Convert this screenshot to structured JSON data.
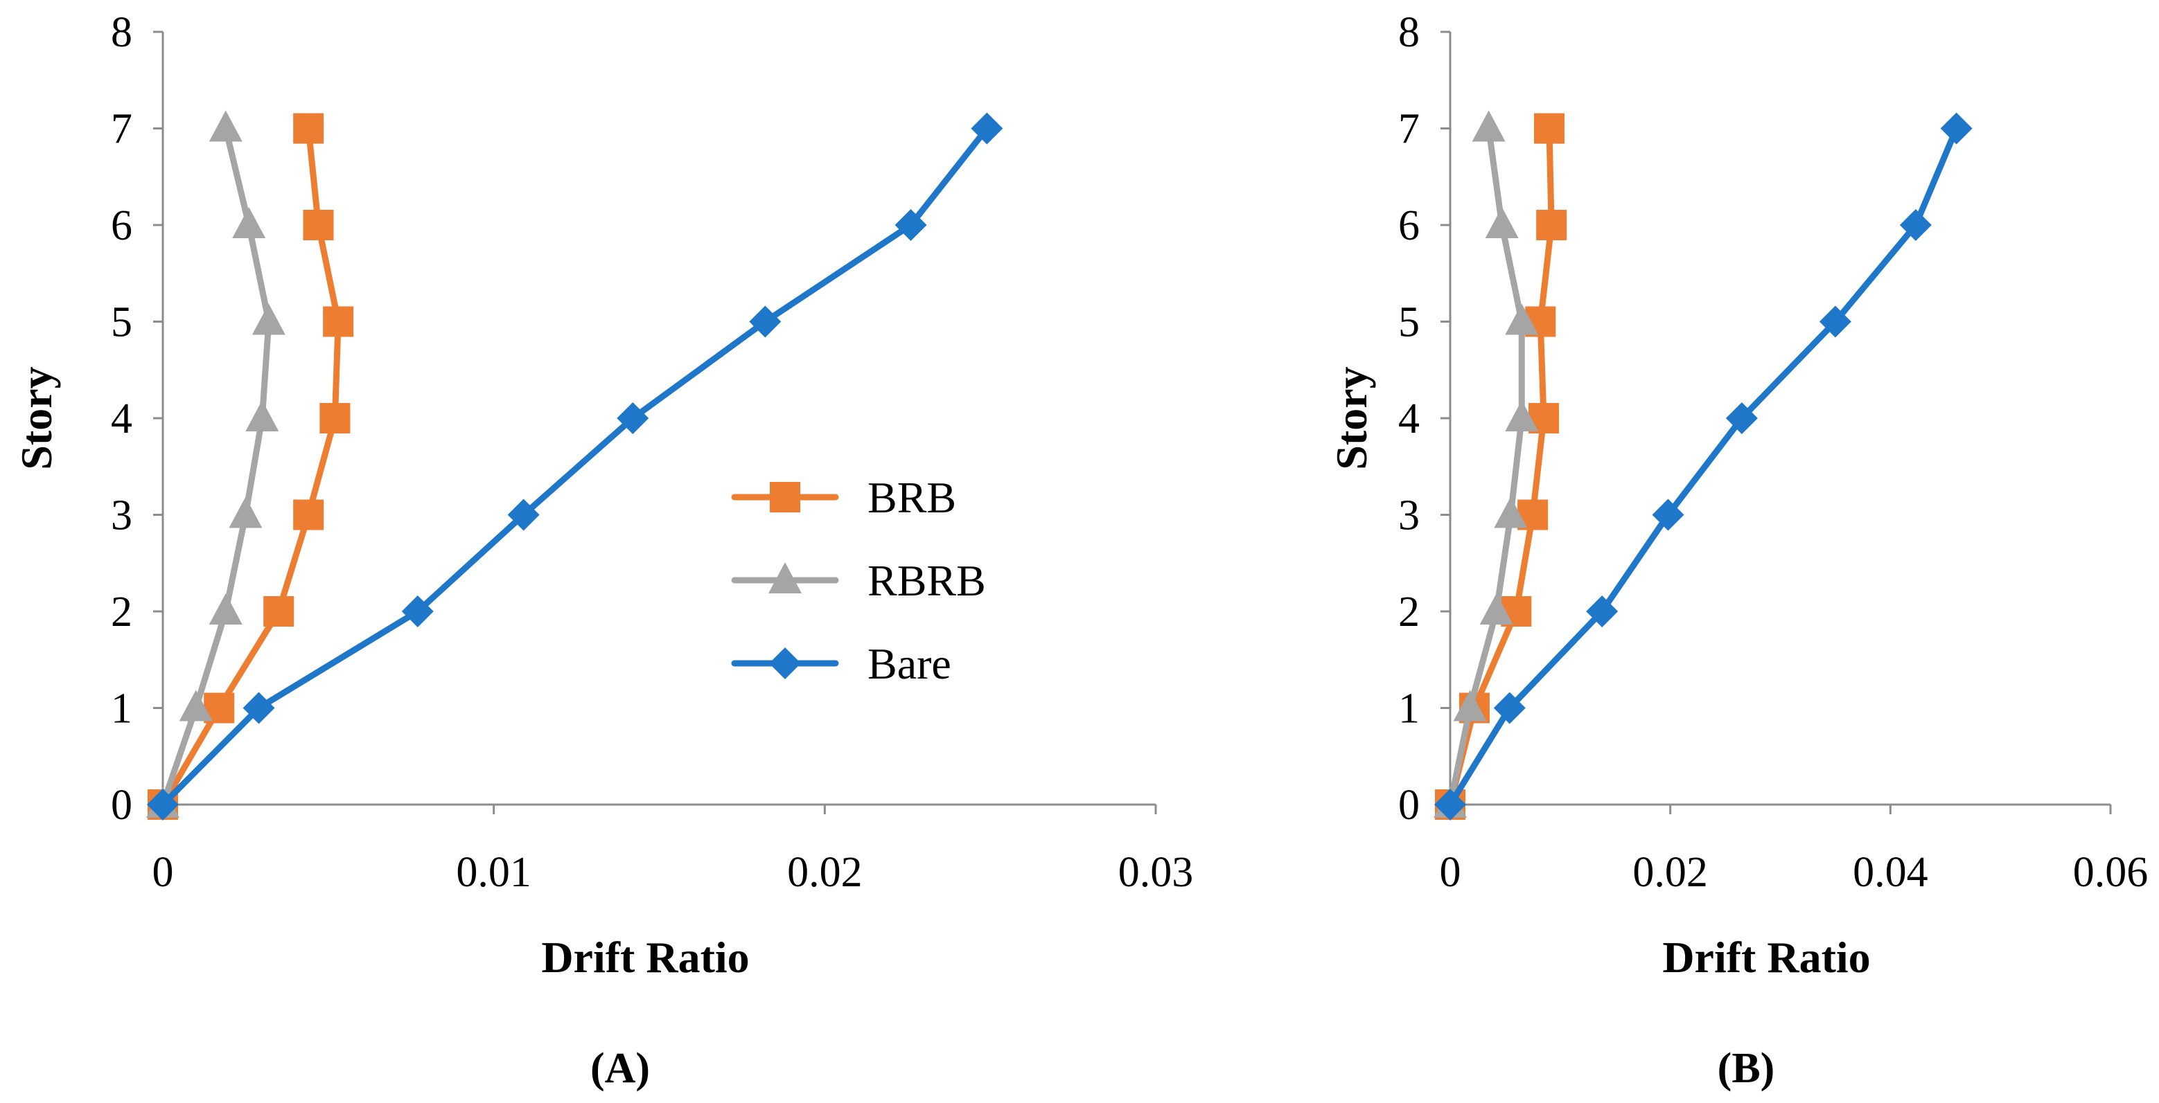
{
  "chart_data": [
    {
      "type": "line",
      "panel_label": "(A)",
      "xlabel": "Drift Ratio",
      "ylabel": "Story",
      "xlim": [
        0,
        0.03
      ],
      "ylim": [
        0,
        8
      ],
      "x_ticks": [
        0,
        0.01,
        0.02,
        0.03
      ],
      "x_tick_labels": [
        "0",
        "0.01",
        "0.02",
        "0.03"
      ],
      "y_ticks": [
        0,
        1,
        2,
        3,
        4,
        5,
        6,
        7,
        8
      ],
      "y_tick_labels": [
        "0",
        "1",
        "2",
        "3",
        "4",
        "5",
        "6",
        "7",
        "8"
      ],
      "legend": true,
      "legend_position": "center-right",
      "series": [
        {
          "name": "BRB",
          "color": "#ed7d31",
          "marker": "square",
          "x": [
            0,
            0.0017,
            0.0035,
            0.0044,
            0.0052,
            0.0053,
            0.0047,
            0.0044
          ],
          "y": [
            0,
            1,
            2,
            3,
            4,
            5,
            6,
            7
          ]
        },
        {
          "name": "RBRB",
          "color": "#a5a5a5",
          "marker": "triangle",
          "x": [
            0,
            0.001,
            0.0019,
            0.0025,
            0.003,
            0.0032,
            0.0026,
            0.0019
          ],
          "y": [
            0,
            1,
            2,
            3,
            4,
            5,
            6,
            7
          ]
        },
        {
          "name": "Bare",
          "color": "#1f77c9",
          "marker": "diamond",
          "x": [
            0,
            0.0029,
            0.0077,
            0.0109,
            0.0142,
            0.0182,
            0.0226,
            0.0249
          ],
          "y": [
            0,
            1,
            2,
            3,
            4,
            5,
            6,
            7
          ]
        }
      ]
    },
    {
      "type": "line",
      "panel_label": "(B)",
      "xlabel": "Drift Ratio",
      "ylabel": "Story",
      "xlim": [
        0,
        0.06
      ],
      "ylim": [
        0,
        8
      ],
      "x_ticks": [
        0,
        0.02,
        0.04,
        0.06
      ],
      "x_tick_labels": [
        "0",
        "0.02",
        "0.04",
        "0.06"
      ],
      "y_ticks": [
        0,
        1,
        2,
        3,
        4,
        5,
        6,
        7,
        8
      ],
      "y_tick_labels": [
        "0",
        "1",
        "2",
        "3",
        "4",
        "5",
        "6",
        "7",
        "8"
      ],
      "legend": false,
      "series": [
        {
          "name": "BRB",
          "color": "#ed7d31",
          "marker": "square",
          "x": [
            0,
            0.0022,
            0.006,
            0.0075,
            0.0085,
            0.0082,
            0.0092,
            0.009
          ],
          "y": [
            0,
            1,
            2,
            3,
            4,
            5,
            6,
            7
          ]
        },
        {
          "name": "RBRB",
          "color": "#a5a5a5",
          "marker": "triangle",
          "x": [
            0,
            0.0018,
            0.0042,
            0.0055,
            0.0065,
            0.0065,
            0.0047,
            0.0035
          ],
          "y": [
            0,
            1,
            2,
            3,
            4,
            5,
            6,
            7
          ]
        },
        {
          "name": "Bare",
          "color": "#1f77c9",
          "marker": "diamond",
          "x": [
            0,
            0.0054,
            0.0138,
            0.0198,
            0.0265,
            0.035,
            0.0423,
            0.046
          ],
          "y": [
            0,
            1,
            2,
            3,
            4,
            5,
            6,
            7
          ]
        }
      ]
    }
  ]
}
